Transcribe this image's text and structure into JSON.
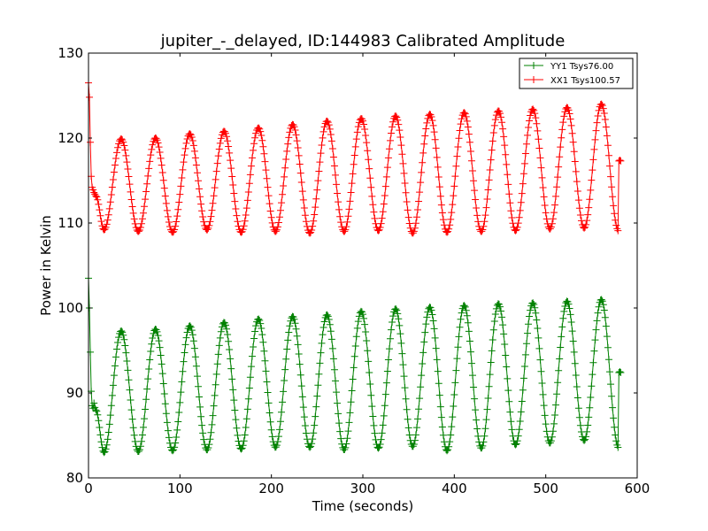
{
  "chart_data": {
    "type": "line",
    "title": "jupiter_-_delayed, ID:144983 Calibrated Amplitude",
    "xlabel": "Time (seconds)",
    "ylabel": "Power in Kelvin",
    "xlim": [
      0,
      600
    ],
    "ylim": [
      80,
      130
    ],
    "xticks": [
      0,
      100,
      200,
      300,
      400,
      500,
      600
    ],
    "yticks": [
      80,
      90,
      100,
      110,
      120,
      130
    ],
    "grid": false,
    "legend_position": "top-right",
    "marker": "+",
    "series": [
      {
        "name": "YY1 Tsys76.00",
        "color": "#008000",
        "start": {
          "x": [
            0,
            1,
            2,
            3,
            4,
            5,
            6,
            7,
            8
          ],
          "y": [
            103.5,
            100.0,
            94.8,
            90.2,
            88.5,
            88.2,
            88.8,
            88.3,
            88.0
          ]
        },
        "period": 37.5,
        "x_start": 8,
        "x_end": 578,
        "first_trough_x": 17,
        "peaks": [
          97.3,
          97.5,
          97.9,
          98.3,
          98.7,
          99.0,
          99.2,
          99.6,
          99.9,
          100.1,
          100.3,
          100.5,
          100.6,
          100.8,
          101.0
        ],
        "troughs": [
          83.0,
          83.1,
          83.2,
          83.3,
          83.4,
          83.6,
          83.6,
          83.3,
          83.5,
          83.7,
          83.2,
          83.5,
          83.9,
          84.1,
          84.4,
          83.6
        ],
        "end": {
          "x": [
            579,
            580,
            581,
            582
          ],
          "y": [
            83.6,
            92.4,
            92.5,
            92.4
          ]
        }
      },
      {
        "name": "XX1 Tsys100.57",
        "color": "#ff0000",
        "start": {
          "x": [
            0,
            1,
            2,
            3,
            4,
            5,
            6,
            7,
            8
          ],
          "y": [
            126.5,
            124.8,
            119.5,
            115.5,
            114.2,
            113.9,
            113.6,
            113.4,
            113.2
          ]
        },
        "period": 37.5,
        "x_start": 8,
        "x_end": 578,
        "first_trough_x": 17,
        "peaks": [
          119.9,
          120.0,
          120.5,
          120.8,
          121.2,
          121.6,
          122.0,
          122.3,
          122.6,
          122.8,
          123.0,
          123.2,
          123.4,
          123.6,
          124.0
        ],
        "troughs": [
          109.2,
          109.0,
          108.9,
          109.2,
          108.9,
          109.0,
          108.8,
          109.0,
          109.1,
          108.8,
          108.9,
          109.0,
          109.1,
          109.3,
          109.4,
          109.1
        ],
        "end": {
          "x": [
            579,
            580,
            581,
            582
          ],
          "y": [
            109.1,
            117.3,
            117.4,
            117.3
          ]
        }
      }
    ]
  }
}
